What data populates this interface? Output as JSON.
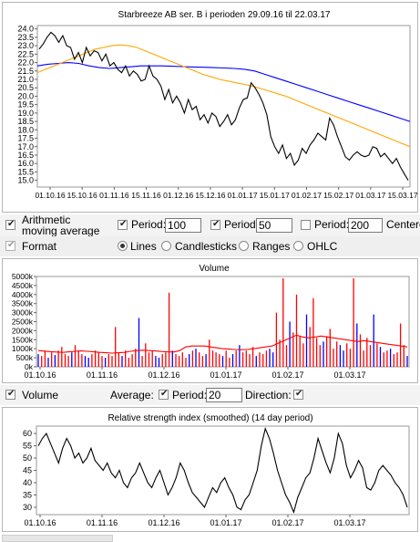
{
  "price_chart": {
    "title": "Starbreeze AB ser. B i perioden 29.09.16 til 22.03.17",
    "y_ticks": [
      "24.0",
      "23.5",
      "23.0",
      "22.5",
      "22.0",
      "21.5",
      "21.0",
      "20.5",
      "20.0",
      "19.5",
      "19.0",
      "18.5",
      "18.0",
      "17.5",
      "17.0",
      "16.5",
      "16.0",
      "15.5",
      "15.0"
    ],
    "x_ticks": [
      "01.10.16",
      "15.10.16",
      "01.11.16",
      "15.11.16",
      "01.12.16",
      "15.12.16",
      "01.01.17",
      "15.01.17",
      "01.02.17",
      "15.02.17",
      "01.03.17",
      "15.03.17"
    ],
    "colors": {
      "price": "#000000",
      "ma_short": "#ffa500",
      "ma_long": "#0000ff"
    }
  },
  "controls_ma": {
    "checkbox_label": "Arithmetic moving average",
    "period_label_1": "Period:",
    "period_value_1": "100",
    "period_label_2": "Period:",
    "period_value_2": "50",
    "period_label_3": "Period:",
    "period_value_3": "200",
    "centered_label": "Centere"
  },
  "controls_format": {
    "label": "Format",
    "options": [
      "Lines",
      "Candlesticks",
      "Ranges",
      "OHLC"
    ],
    "selected": "Lines"
  },
  "volume_chart": {
    "title": "Volume",
    "y_ticks": [
      "5000k",
      "4500k",
      "4000k",
      "3500k",
      "3000k",
      "2500k",
      "2000k",
      "1500k",
      "1000k",
      "500k",
      "0k"
    ],
    "x_ticks": [
      "01.10.16",
      "01.11.16",
      "01.12.16",
      "01.01.17",
      "01.02.17",
      "01.03.17"
    ],
    "colors": {
      "up": "#0000ff",
      "down": "#ff0000",
      "avg": "#ff0000"
    }
  },
  "controls_volume": {
    "checkbox_label": "Volume",
    "average_label": "Average:",
    "period_label": "Period:",
    "period_value": "20",
    "direction_label": "Direction:"
  },
  "rsi_chart": {
    "title": "Relative strength index (smoothed) (14 day period)",
    "y_ticks": [
      "60",
      "55",
      "50",
      "45",
      "40",
      "35",
      "30"
    ],
    "x_ticks": [
      "01.10.16",
      "01.11.16",
      "01.12.16",
      "01.01.17",
      "01.02.17",
      "01.03.17"
    ]
  },
  "chart_data": [
    {
      "type": "line",
      "title": "Starbreeze AB ser. B i perioden 29.09.16 til 22.03.17",
      "x_range": [
        "29.09.16",
        "22.03.17"
      ],
      "ylim": [
        14.6,
        24.2
      ],
      "series": [
        {
          "values": [
            22.8,
            23.1,
            23.5,
            23.8,
            23.6,
            23.2,
            23.6,
            23.0,
            22.9,
            22.2,
            22.6,
            22.0,
            22.9,
            22.4,
            22.7,
            22.6,
            22.1,
            22.5,
            21.8,
            22.0,
            21.6,
            21.4,
            21.8,
            21.2,
            21.5,
            21.3,
            20.9,
            21.0,
            21.8,
            21.2,
            21.0,
            20.6,
            19.8,
            20.4,
            19.6,
            20.0,
            19.6,
            19.0,
            19.8,
            19.2,
            19.4,
            18.6,
            18.9,
            18.4,
            19.0,
            18.8,
            18.2,
            18.5,
            18.9,
            18.3,
            18.6,
            19.3,
            19.8,
            19.9,
            20.8,
            20.5,
            20.1,
            19.6,
            18.9,
            17.6,
            17.0,
            16.6,
            17.1,
            16.3,
            16.6,
            15.9,
            16.2,
            16.9,
            16.6,
            17.1,
            17.4,
            17.8,
            17.6,
            17.4,
            18.7,
            18.3,
            17.6,
            17.0,
            16.4,
            16.2,
            16.5,
            16.7,
            16.5,
            16.4,
            16.5,
            17.0,
            16.9,
            16.4,
            16.6,
            16.3,
            16.0,
            16.3,
            15.8,
            15.4,
            15.0
          ]
        },
        {
          "values": [
            21.4,
            21.6,
            21.8,
            22.0,
            22.2,
            22.4,
            22.6,
            22.8,
            22.9,
            23.0,
            23.05,
            23.0,
            22.9,
            22.7,
            22.5,
            22.3,
            22.1,
            21.9,
            21.7,
            21.5,
            21.3,
            21.15,
            21.0,
            20.9,
            20.8,
            20.7,
            20.6,
            20.45,
            20.3,
            20.15,
            20.0,
            19.8,
            19.6,
            19.4,
            19.2,
            19.0,
            18.8,
            18.6,
            18.4,
            18.2,
            18.0,
            17.8,
            17.6,
            17.4,
            17.2,
            17.0
          ]
        },
        {
          "values": [
            21.8,
            21.9,
            21.95,
            22.0,
            21.95,
            21.8,
            21.7,
            21.65,
            21.7,
            21.75,
            21.8,
            21.8,
            21.8,
            21.78,
            21.76,
            21.74,
            21.72,
            21.7,
            21.68,
            21.65,
            21.6,
            21.5,
            21.3,
            21.1,
            20.9,
            20.7,
            20.5,
            20.3,
            20.1,
            19.9,
            19.7,
            19.5,
            19.3,
            19.1,
            18.9,
            18.7,
            18.5
          ]
        }
      ]
    },
    {
      "type": "bar",
      "title": "Volume",
      "ylim": [
        0,
        5000
      ],
      "series": [
        {
          "values": [
            700,
            600,
            900,
            500,
            800,
            650,
            900,
            1100,
            700,
            600,
            800,
            1200,
            900,
            700,
            600,
            500,
            700,
            900,
            800,
            600,
            500,
            700,
            600,
            2200,
            800,
            600,
            900,
            500,
            700,
            1000,
            2700,
            600,
            1300,
            800,
            900,
            600,
            500,
            700,
            800,
            4100,
            900,
            700,
            600,
            800,
            500,
            700,
            900,
            1000,
            800,
            600,
            700,
            1500,
            900,
            800,
            700,
            600,
            900,
            500,
            700,
            900,
            1200,
            800,
            900,
            700,
            1100,
            600,
            800,
            700,
            900,
            1000,
            800,
            3000,
            1500,
            4900,
            1200,
            2500,
            1900,
            4000,
            1700,
            1300,
            2900,
            2200,
            3800,
            1600,
            1200,
            1400,
            1700,
            2100,
            1000,
            1400,
            1200,
            900,
            1300,
            1000,
            4900,
            2400,
            1800,
            900,
            1600,
            1200,
            2900,
            1300,
            1100,
            800,
            900,
            1000,
            700,
            800,
            2400,
            1200,
            600
          ]
        },
        {
          "values": [
            900,
            870,
            840,
            820,
            800,
            830,
            860,
            880,
            860,
            830,
            800,
            780,
            760,
            780,
            800,
            860,
            900,
            920,
            900,
            880,
            850,
            830,
            820,
            900,
            1100,
            1150,
            1150,
            1150,
            1100,
            1050,
            1000,
            980,
            960,
            950,
            960,
            1000,
            1050,
            1100,
            1150,
            1300,
            1450,
            1600,
            1750,
            1650,
            1600,
            1650,
            1700,
            1650,
            1600,
            1550,
            1500,
            1450,
            1400,
            1450,
            1400,
            1350,
            1300,
            1250,
            1200,
            1150,
            1100
          ]
        }
      ]
    },
    {
      "type": "line",
      "title": "Relative strength index (smoothed) (14 day period)",
      "ylim": [
        27,
        63
      ],
      "series": [
        {
          "values": [
            55,
            58,
            60,
            56,
            52,
            48,
            54,
            58,
            55,
            50,
            52,
            48,
            50,
            54,
            49,
            47,
            45,
            48,
            44,
            42,
            45,
            40,
            38,
            42,
            44,
            48,
            44,
            40,
            38,
            42,
            45,
            40,
            35,
            38,
            42,
            48,
            45,
            40,
            36,
            34,
            32,
            30,
            34,
            38,
            36,
            40,
            42,
            38,
            35,
            30,
            29,
            33,
            35,
            40,
            45,
            55,
            62,
            58,
            52,
            45,
            40,
            35,
            32,
            28,
            34,
            38,
            42,
            44,
            50,
            58,
            53,
            48,
            44,
            50,
            60,
            56,
            47,
            42,
            45,
            49,
            46,
            38,
            37,
            40,
            45,
            47,
            45,
            43,
            40,
            38,
            35,
            30
          ]
        }
      ]
    }
  ]
}
